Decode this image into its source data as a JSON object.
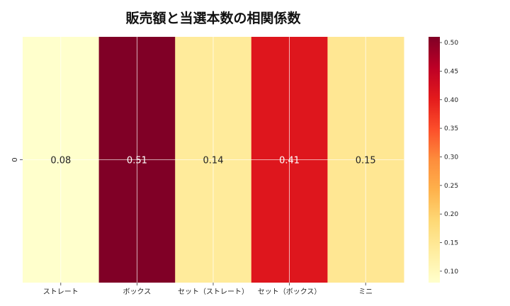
{
  "chart_data": {
    "type": "heatmap",
    "title": "販売額と当選本数の相関係数",
    "row_labels": [
      "0"
    ],
    "categories": [
      "ストレート",
      "ボックス",
      "セット（ストレート）",
      "セット（ボックス）",
      "ミニ"
    ],
    "values": [
      [
        0.08,
        0.51,
        0.14,
        0.41,
        0.15
      ]
    ],
    "value_labels": [
      "0.08",
      "0.51",
      "0.14",
      "0.41",
      "0.15"
    ],
    "colormap": "YlOrRd",
    "colorbar": {
      "range": [
        0.08,
        0.51
      ],
      "ticks": [
        "0.10",
        "0.15",
        "0.20",
        "0.25",
        "0.30",
        "0.35",
        "0.40",
        "0.45",
        "0.50"
      ],
      "tick_values": [
        0.1,
        0.15,
        0.2,
        0.25,
        0.3,
        0.35,
        0.4,
        0.45,
        0.5
      ]
    },
    "grid": true,
    "colors": {
      "low": "#ffffcc",
      "mid_low": "#fed976",
      "mid": "#fd8d3c",
      "mid_high": "#e31a1c",
      "high": "#800026"
    }
  }
}
